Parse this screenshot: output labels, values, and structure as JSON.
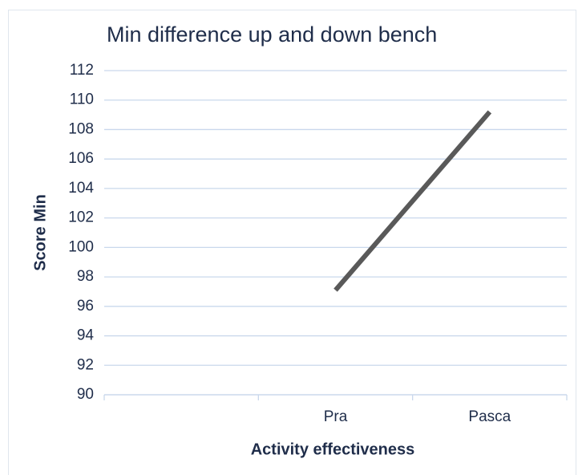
{
  "chart_data": {
    "type": "line",
    "title": "Min difference up and down bench",
    "xlabel": "Activity effectiveness",
    "ylabel": "Score Min",
    "categories": [
      null,
      "Pra",
      "Pasca"
    ],
    "values": [
      null,
      97.1,
      109.2
    ],
    "color": "#595959",
    "ylim": [
      90,
      112
    ],
    "yticks": [
      90,
      92,
      94,
      96,
      98,
      100,
      102,
      104,
      106,
      108,
      110,
      112
    ],
    "grid": true
  }
}
